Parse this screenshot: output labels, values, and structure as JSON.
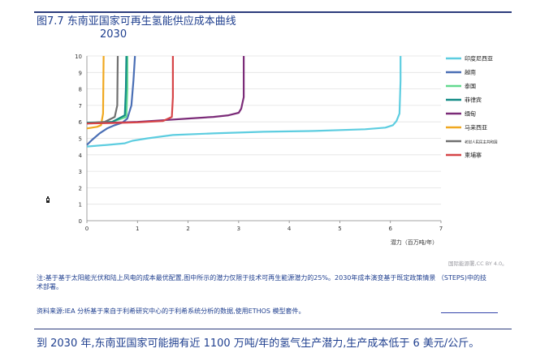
{
  "page": {
    "title_line1": "图7.7 东南亚国家可再生氢能供应成本曲线",
    "title_line2": "2030",
    "note": "注:基于基于太阳能光伏和陆上风电的成本最优配置,图中所示的潜力仅限于技术可再生能源潜力的25%。2030年成本演变基于既定政策情景 （STEPS)中的技术部署。",
    "source": "资料来源:IEA 分析基于来自于利希研究中心的于利希系统分析的数据,使用ETHOS 模型套件。",
    "credit": "国际能源署,CC BY 4.0。",
    "summary": "到 2030 年,东南亚国家可能拥有近 1100 万吨/年的氢气生产潜力,生产成本低于 6 美元/公斤。"
  },
  "chart_data": {
    "type": "line",
    "title": "",
    "xlabel": "潜力（百万吨/年）",
    "ylabel": "",
    "xlim": [
      0,
      7
    ],
    "ylim": [
      0,
      10
    ],
    "x_ticks": [
      0,
      1,
      2,
      3,
      4,
      5,
      6,
      7
    ],
    "y_ticks": [
      0,
      1,
      2,
      3,
      4,
      5,
      6,
      7,
      8,
      9,
      10
    ],
    "grid": "horizontal",
    "legend_position": "right",
    "series": [
      {
        "name": "印度尼西亚",
        "color": "#5dcde0",
        "x": [
          0,
          0.4,
          0.75,
          0.9,
          1.2,
          1.7,
          2.5,
          3.5,
          4.5,
          5.5,
          5.9,
          6.05,
          6.12,
          6.18,
          6.2,
          6.2
        ],
        "y": [
          4.5,
          4.6,
          4.7,
          4.85,
          5.0,
          5.2,
          5.3,
          5.4,
          5.45,
          5.55,
          5.65,
          5.8,
          6.05,
          6.5,
          8.5,
          10
        ]
      },
      {
        "name": "越南",
        "color": "#4a6fb5",
        "x": [
          0,
          0.1,
          0.25,
          0.4,
          0.55,
          0.7,
          0.8,
          0.88,
          0.92,
          0.95
        ],
        "y": [
          4.6,
          4.9,
          5.3,
          5.6,
          5.8,
          5.95,
          6.2,
          7.0,
          8.5,
          10
        ]
      },
      {
        "name": "泰国",
        "color": "#62d98f",
        "x": [
          0,
          0.2,
          0.5,
          0.78,
          0.8,
          0.8
        ],
        "y": [
          5.9,
          5.95,
          6.0,
          6.3,
          8.0,
          10
        ]
      },
      {
        "name": "菲律宾",
        "color": "#138c86",
        "x": [
          0,
          0.2,
          0.5,
          0.75,
          0.77,
          0.78
        ],
        "y": [
          5.95,
          5.97,
          6.0,
          6.4,
          8.0,
          10
        ]
      },
      {
        "name": "缅甸",
        "color": "#7b2b78",
        "x": [
          0,
          0.5,
          1.0,
          1.5,
          2.0,
          2.5,
          2.8,
          3.0,
          3.05,
          3.1,
          3.1
        ],
        "y": [
          5.9,
          5.95,
          6.0,
          6.1,
          6.2,
          6.3,
          6.4,
          6.55,
          6.8,
          7.5,
          10
        ]
      },
      {
        "name": "马来西亚",
        "color": "#f0a820",
        "x": [
          0,
          0.1,
          0.2,
          0.28,
          0.32,
          0.33
        ],
        "y": [
          5.6,
          5.65,
          5.7,
          5.8,
          6.5,
          10
        ]
      },
      {
        "name": "老挝人民民主共和国",
        "color": "#707070",
        "x": [
          0,
          0.15,
          0.35,
          0.55,
          0.6,
          0.61
        ],
        "y": [
          5.9,
          5.95,
          6.0,
          6.3,
          7.0,
          10
        ]
      },
      {
        "name": "柬埔寨",
        "color": "#d64548",
        "x": [
          0,
          0.5,
          1.0,
          1.5,
          1.68,
          1.7,
          1.7
        ],
        "y": [
          5.9,
          5.93,
          5.97,
          6.05,
          6.3,
          7.5,
          10
        ]
      }
    ]
  }
}
